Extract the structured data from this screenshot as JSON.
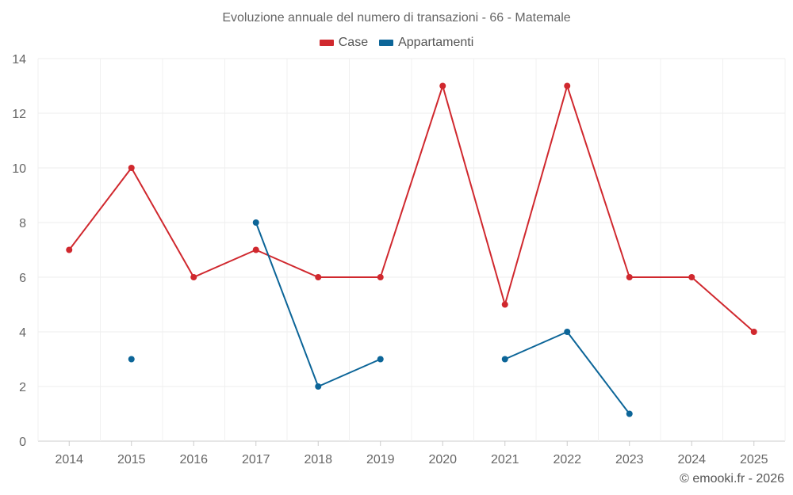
{
  "chart_data": {
    "type": "line",
    "title": "Evoluzione annuale del numero di transazioni - 66 - Matemale",
    "categories": [
      "2014",
      "2015",
      "2016",
      "2017",
      "2018",
      "2019",
      "2020",
      "2021",
      "2022",
      "2023",
      "2024",
      "2025"
    ],
    "ylim": [
      0,
      14
    ],
    "yticks": [
      0,
      2,
      4,
      6,
      8,
      10,
      12,
      14
    ],
    "grid": true,
    "legend_position": "top-center",
    "series": [
      {
        "name": "Case",
        "color": "#d0282e",
        "values": [
          7,
          10,
          6,
          7,
          6,
          6,
          13,
          5,
          13,
          6,
          6,
          4
        ]
      },
      {
        "name": "Appartamenti",
        "color": "#0c6598",
        "values": [
          null,
          3,
          null,
          8,
          2,
          3,
          null,
          3,
          4,
          1,
          null,
          null
        ]
      }
    ]
  },
  "credit": "© emooki.fr - 2026"
}
